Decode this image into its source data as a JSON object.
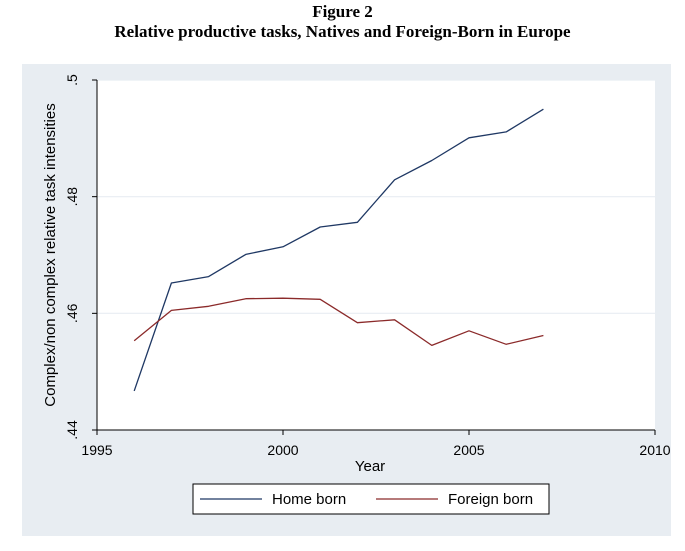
{
  "figure": {
    "title": "Figure 2",
    "subtitle": "Relative productive tasks, Natives and Foreign-Born in Europe"
  },
  "colors": {
    "panel_background": "#e8edf2",
    "plot_background": "#ffffff",
    "home_born": "#1f3864",
    "foreign_born": "#8b2a2a"
  },
  "chart_data": {
    "type": "line",
    "title": "",
    "xlabel": "Year",
    "ylabel": "Complex/non complex relative task intensities",
    "xlim": [
      1995,
      2010
    ],
    "ylim": [
      0.44,
      0.5
    ],
    "xticks": [
      1995,
      2000,
      2005,
      2010
    ],
    "xtick_labels": [
      "1995",
      "2000",
      "2005",
      "2010"
    ],
    "yticks": [
      0.44,
      0.46,
      0.48,
      0.5
    ],
    "ytick_labels": [
      ".44",
      ".46",
      ".48",
      ".5"
    ],
    "grid": true,
    "legend_position": "bottom",
    "x": [
      1996,
      1997,
      1998,
      1999,
      2000,
      2001,
      2002,
      2003,
      2004,
      2005,
      2006,
      2007
    ],
    "series": [
      {
        "name": "Home born",
        "color": "#1f3864",
        "values": [
          0.4467,
          0.4652,
          0.4663,
          0.4701,
          0.4714,
          0.4748,
          0.4756,
          0.4829,
          0.4862,
          0.4901,
          0.4911,
          0.495
        ]
      },
      {
        "name": "Foreign born",
        "color": "#8b2a2a",
        "values": [
          0.4553,
          0.4605,
          0.4612,
          0.4625,
          0.4626,
          0.4624,
          0.4584,
          0.4589,
          0.4545,
          0.457,
          0.4547,
          0.4562
        ]
      }
    ]
  }
}
